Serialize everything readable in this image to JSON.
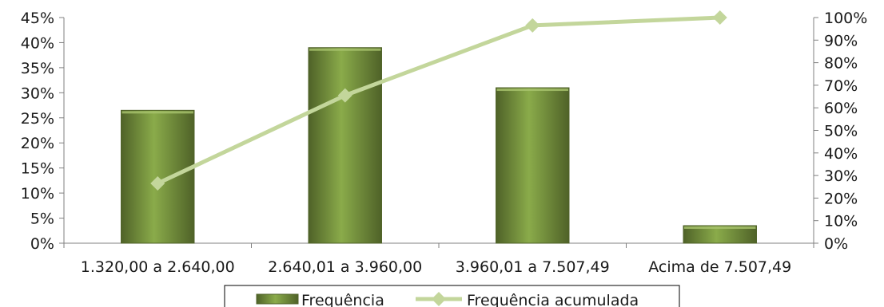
{
  "chart_data": {
    "type": "bar",
    "categories": [
      "1.320,00 a 2.640,00",
      "2.640,01 a 3.960,00",
      "3.960,01 a 7.507,49",
      "Acima de 7.507,49"
    ],
    "series": [
      {
        "name": "Frequência",
        "type": "bar",
        "axis": "left",
        "values": [
          26.5,
          39,
          31,
          3.5
        ],
        "color": "#76923c"
      },
      {
        "name": "Frequência acumulada",
        "type": "line",
        "axis": "right",
        "values": [
          26.5,
          65.5,
          96.5,
          100
        ],
        "color": "#c3d69b"
      }
    ],
    "y_left": {
      "min": 0,
      "max": 45,
      "step": 5,
      "tick_labels": [
        "0%",
        "5%",
        "10%",
        "15%",
        "20%",
        "25%",
        "30%",
        "35%",
        "40%",
        "45%"
      ]
    },
    "y_right": {
      "min": 0,
      "max": 100,
      "step": 10,
      "tick_labels": [
        "0%",
        "10%",
        "20%",
        "30%",
        "40%",
        "50%",
        "60%",
        "70%",
        "80%",
        "90%",
        "100%"
      ]
    },
    "grid": false,
    "legend": {
      "position": "bottom",
      "entries": [
        "Frequência",
        "Frequência acumulada"
      ]
    }
  }
}
